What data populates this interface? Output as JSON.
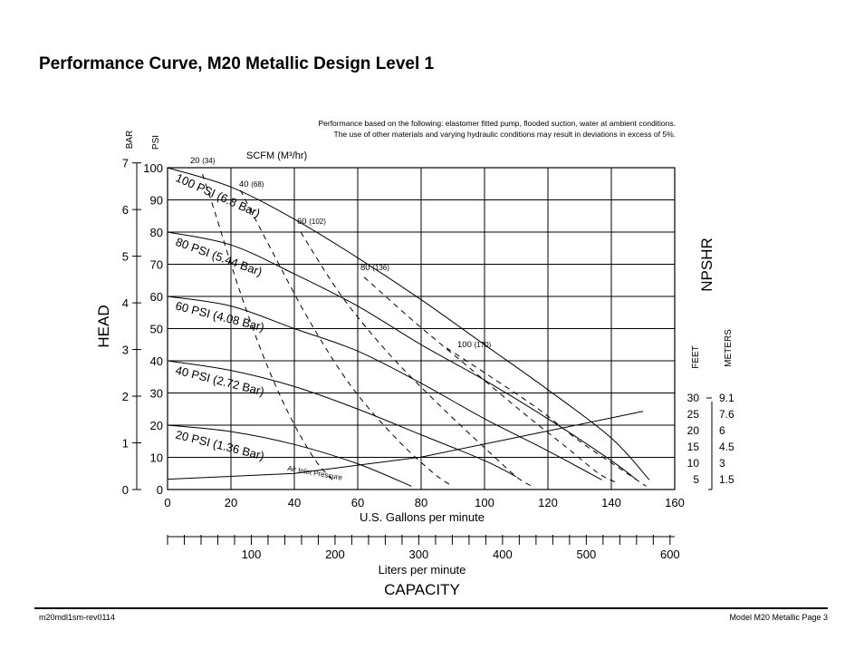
{
  "title": "Performance Curve, M20 Metallic Design Level 1",
  "footer": {
    "left": "m20mdl1sm-rev0114",
    "right": "Model M20 Metallic Page 3"
  },
  "chart_data": {
    "type": "line",
    "note_line1": "Performance based on the following: elastomer fitted pump, flooded suction, water at ambient conditions.",
    "note_line2": "The use of other materials and varying hydraulic conditions may result in deviations in excess of 5%.",
    "xlabel": "U.S. Gallons per minute",
    "x2label": "Liters per minute",
    "capacity_label": "CAPACITY",
    "head_label": "HEAD",
    "npshr_label": "NPSHR",
    "bar_label": "BAR",
    "psi_label": "PSI",
    "feet_label": "FEET",
    "meters_label": "METERS",
    "scfm_label": "SCFM (M³/hr)",
    "air_inlet_label": "Air Inlet Pressure",
    "xlim": [
      0,
      160
    ],
    "ylim": [
      0,
      100
    ],
    "x_ticks": [
      "0",
      "20",
      "40",
      "60",
      "80",
      "100",
      "120",
      "140",
      "160"
    ],
    "y_ticks": [
      "0",
      "10",
      "20",
      "30",
      "40",
      "50",
      "60",
      "70",
      "80",
      "90",
      "100"
    ],
    "bar_ticks": [
      "0",
      "1",
      "2",
      "3",
      "4",
      "5",
      "6",
      "7"
    ],
    "bar_values": [
      0,
      1,
      2,
      3,
      4,
      5,
      6,
      7
    ],
    "liters_ticks": [
      "100",
      "200",
      "300",
      "400",
      "500",
      "600"
    ],
    "liters_values": [
      100,
      200,
      300,
      400,
      500,
      600
    ],
    "npshr_feet": [
      "30",
      "25",
      "20",
      "15",
      "10",
      "5"
    ],
    "npshr_feet_values": [
      30,
      25,
      20,
      15,
      10,
      5
    ],
    "npshr_meters": [
      "9.1",
      "7.6",
      "6",
      "4.5",
      "3",
      "1.5"
    ],
    "npshr_meters_values": [
      9.1,
      7.6,
      6,
      4.5,
      3,
      1.5
    ],
    "npshr_curve": {
      "x": [
        0,
        40,
        80,
        110,
        150
      ],
      "npshr_ft": [
        6.2,
        8,
        13,
        19,
        27
      ]
    },
    "pressure_series": [
      {
        "name": "100 PSI (6.8 Bar)",
        "x": [
          0,
          20,
          40,
          60,
          80,
          100,
          120,
          140,
          152
        ],
        "y": [
          100,
          94,
          84,
          72,
          59,
          45,
          31,
          16,
          3
        ]
      },
      {
        "name": "80 PSI (5.44 Bar)",
        "x": [
          0,
          20,
          40,
          60,
          80,
          100,
          120,
          140,
          148
        ],
        "y": [
          80,
          76,
          67,
          57,
          45,
          34,
          22,
          9,
          3
        ]
      },
      {
        "name": "60 PSI (4.08 Bar)",
        "x": [
          0,
          20,
          40,
          60,
          80,
          100,
          120,
          137
        ],
        "y": [
          60,
          57,
          50,
          43,
          33,
          22,
          12,
          3
        ]
      },
      {
        "name": "40 PSI (2.72 Bar)",
        "x": [
          0,
          20,
          40,
          60,
          80,
          100,
          110
        ],
        "y": [
          40,
          37,
          32,
          25,
          17,
          9,
          4
        ]
      },
      {
        "name": "20 PSI (1.36 Bar)",
        "x": [
          0,
          20,
          40,
          60,
          77
        ],
        "y": [
          20,
          18,
          14,
          8,
          1
        ]
      }
    ],
    "scfm_series": [
      {
        "name": "20",
        "m3hr": "(34)",
        "x": [
          11,
          15,
          22,
          30,
          38,
          46,
          52
        ],
        "y": [
          98,
          86,
          64,
          42,
          24,
          10,
          3
        ]
      },
      {
        "name": "40",
        "m3hr": "(68)",
        "x": [
          23,
          33,
          45,
          58,
          72,
          84,
          90
        ],
        "y": [
          93,
          74,
          52,
          32,
          16,
          5,
          1
        ]
      },
      {
        "name": "60",
        "m3hr": "(102)",
        "x": [
          42,
          55,
          70,
          86,
          100,
          110,
          115
        ],
        "y": [
          80,
          60,
          42,
          26,
          13,
          4,
          1
        ]
      },
      {
        "name": "80",
        "m3hr": "(136)",
        "x": [
          62,
          78,
          95,
          112,
          126,
          136,
          142
        ],
        "y": [
          66,
          52,
          38,
          24,
          13,
          5,
          2
        ]
      },
      {
        "name": "100",
        "m3hr": "(170)",
        "x": [
          88,
          102,
          117,
          130,
          142,
          148,
          151
        ],
        "y": [
          44,
          35,
          25,
          15,
          7,
          3,
          1
        ]
      }
    ]
  }
}
